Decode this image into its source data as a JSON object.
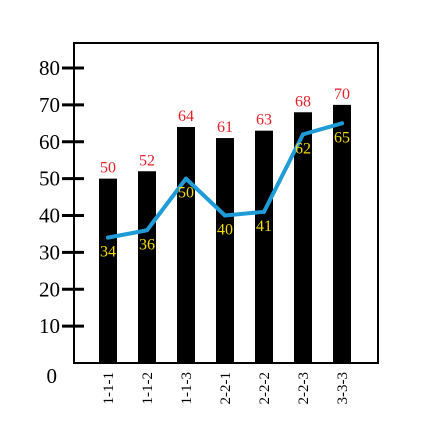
{
  "chart_data": {
    "type": "bar",
    "categories": [
      "1-1-1",
      "1-1-2",
      "1-1-3",
      "2-2-1",
      "2-2-2",
      "2-2-3",
      "3-3-3"
    ],
    "ylim": [
      0,
      80
    ],
    "yticks": [
      0,
      10,
      20,
      30,
      40,
      50,
      60,
      70,
      80
    ],
    "grid": false,
    "series": [
      {
        "type": "bar",
        "values": [
          50,
          52,
          64,
          61,
          63,
          68,
          70
        ],
        "color": "#000000",
        "label_color": "#e8202a"
      },
      {
        "type": "line",
        "values": [
          34,
          36,
          50,
          40,
          41,
          62,
          65
        ],
        "color": "#1f9bd7",
        "label_color": "#f5dc00"
      }
    ]
  }
}
